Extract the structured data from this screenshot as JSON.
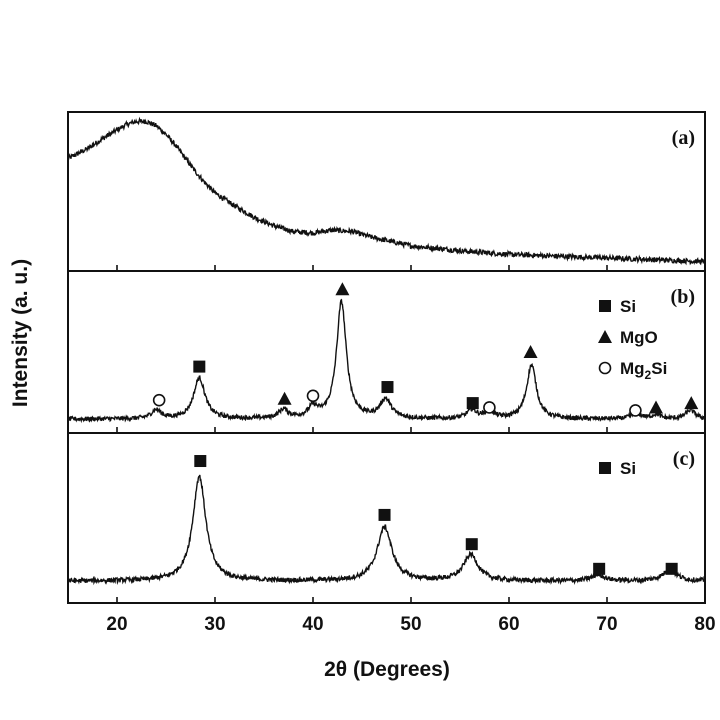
{
  "chart_data": {
    "type": "line",
    "xlabel": "2θ (Degrees)",
    "ylabel": "Intensity (a. u.)",
    "xlim": [
      15,
      80
    ],
    "xticks": [
      "20",
      "30",
      "40",
      "50",
      "60",
      "70",
      "80"
    ],
    "xtick_values": [
      20,
      30,
      40,
      50,
      60,
      70,
      80
    ],
    "grid": false,
    "panels": [
      {
        "label": "(a)",
        "ylim": [
          0,
          1
        ],
        "x": [
          15,
          17,
          19,
          20,
          21,
          22,
          23,
          24,
          25,
          26,
          27,
          28,
          29,
          30,
          32,
          34,
          36,
          38,
          40,
          42,
          44,
          46,
          48,
          50,
          53,
          56,
          60,
          64,
          68,
          72,
          76,
          80
        ],
        "y": [
          0.73,
          0.8,
          0.89,
          0.93,
          0.97,
          0.99,
          0.99,
          0.96,
          0.9,
          0.82,
          0.73,
          0.64,
          0.56,
          0.49,
          0.4,
          0.32,
          0.26,
          0.22,
          0.21,
          0.23,
          0.22,
          0.18,
          0.15,
          0.12,
          0.1,
          0.08,
          0.06,
          0.05,
          0.04,
          0.03,
          0.02,
          0.01
        ],
        "markers": [],
        "legend": []
      },
      {
        "label": "(b)",
        "ylim": [
          0,
          1
        ],
        "baseline": 0.04,
        "peaks": [
          {
            "x": 24.0,
            "h": 0.06,
            "w": 0.6
          },
          {
            "x": 28.4,
            "h": 0.28,
            "w": 0.7
          },
          {
            "x": 37.0,
            "h": 0.06,
            "w": 0.6
          },
          {
            "x": 40.0,
            "h": 0.07,
            "w": 0.6
          },
          {
            "x": 42.9,
            "h": 0.8,
            "w": 0.6
          },
          {
            "x": 47.4,
            "h": 0.13,
            "w": 0.7
          },
          {
            "x": 56.2,
            "h": 0.06,
            "w": 0.6
          },
          {
            "x": 58.0,
            "h": 0.05,
            "w": 0.6
          },
          {
            "x": 62.3,
            "h": 0.37,
            "w": 0.6
          },
          {
            "x": 73.0,
            "h": 0.04,
            "w": 0.6
          },
          {
            "x": 75.0,
            "h": 0.03,
            "w": 0.5
          },
          {
            "x": 78.5,
            "h": 0.06,
            "w": 0.6
          }
        ],
        "markers": [
          {
            "x": 24.3,
            "phase": "Mg2Si",
            "y": 0.17
          },
          {
            "x": 28.4,
            "phase": "Si",
            "y": 0.4
          },
          {
            "x": 37.1,
            "phase": "MgO",
            "y": 0.18
          },
          {
            "x": 40.0,
            "phase": "Mg2Si",
            "y": 0.2
          },
          {
            "x": 43.0,
            "phase": "MgO",
            "y": 0.93
          },
          {
            "x": 47.6,
            "phase": "Si",
            "y": 0.26
          },
          {
            "x": 56.3,
            "phase": "Si",
            "y": 0.15
          },
          {
            "x": 58.0,
            "phase": "Mg2Si",
            "y": 0.12
          },
          {
            "x": 62.2,
            "phase": "MgO",
            "y": 0.5
          },
          {
            "x": 72.9,
            "phase": "Mg2Si",
            "y": 0.1
          },
          {
            "x": 75.0,
            "phase": "MgO",
            "y": 0.12
          },
          {
            "x": 78.6,
            "phase": "MgO",
            "y": 0.15
          }
        ],
        "legend": [
          {
            "phase": "Si",
            "text": "Si"
          },
          {
            "phase": "MgO",
            "text": "MgO"
          },
          {
            "phase": "Mg2Si",
            "text": "Mg",
            "sub": "2",
            "tail": "Si"
          }
        ]
      },
      {
        "label": "(c)",
        "ylim": [
          0,
          1
        ],
        "baseline": 0.09,
        "peaks": [
          {
            "x": 28.4,
            "h": 0.68,
            "w": 0.8
          },
          {
            "x": 47.3,
            "h": 0.35,
            "w": 0.9
          },
          {
            "x": 56.1,
            "h": 0.17,
            "w": 0.9
          },
          {
            "x": 69.1,
            "h": 0.04,
            "w": 0.8
          },
          {
            "x": 76.4,
            "h": 0.07,
            "w": 0.9
          }
        ],
        "markers": [
          {
            "x": 28.5,
            "phase": "Si",
            "y": 0.87
          },
          {
            "x": 47.3,
            "phase": "Si",
            "y": 0.52
          },
          {
            "x": 56.2,
            "phase": "Si",
            "y": 0.33
          },
          {
            "x": 69.2,
            "phase": "Si",
            "y": 0.17
          },
          {
            "x": 76.6,
            "phase": "Si",
            "y": 0.17
          }
        ],
        "legend": [
          {
            "phase": "Si",
            "text": "Si"
          }
        ]
      }
    ]
  }
}
